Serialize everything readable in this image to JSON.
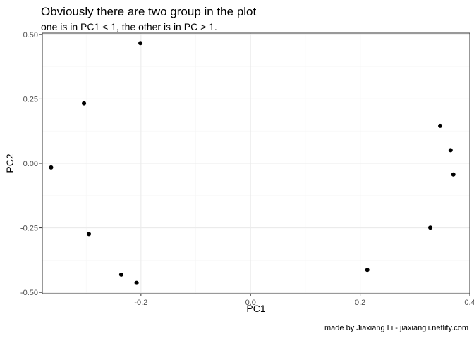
{
  "chart_data": {
    "type": "scatter",
    "title": "Obviously there are two group in the plot",
    "subtitle": "one is in PC1 < 1, the other is in PC > 1.",
    "xlabel": "PC1",
    "ylabel": "PC2",
    "caption": "made by Jiaxiang Li - jiaxiangli.netlify.com",
    "xlim": [
      -0.38,
      0.4
    ],
    "ylim": [
      -0.505,
      0.505
    ],
    "x_major_ticks": [
      -0.2,
      0.0,
      0.2,
      0.4
    ],
    "x_tick_labels": [
      "-0.2",
      "0.0",
      "0.2",
      "0.4"
    ],
    "x_minor_ticks": [
      -0.3,
      -0.1,
      0.1,
      0.3
    ],
    "y_major_ticks": [
      -0.5,
      -0.25,
      0.0,
      0.25,
      0.5
    ],
    "y_tick_labels": [
      "-0.50",
      "-0.25",
      "0.00",
      "0.25",
      "0.50"
    ],
    "y_minor_ticks": [
      -0.375,
      -0.125,
      0.125,
      0.375
    ],
    "grid": true,
    "theme": "bw",
    "point_color": "#000000",
    "grid_major_color": "#ebebeb",
    "grid_minor_color": "#f5f5f5",
    "panel_border_color": "#333333",
    "points": [
      {
        "x": -0.201,
        "y": 0.466
      },
      {
        "x": -0.304,
        "y": 0.233
      },
      {
        "x": -0.364,
        "y": -0.016
      },
      {
        "x": -0.295,
        "y": -0.274
      },
      {
        "x": -0.236,
        "y": -0.431
      },
      {
        "x": -0.208,
        "y": -0.463
      },
      {
        "x": 0.213,
        "y": -0.413
      },
      {
        "x": 0.328,
        "y": -0.249
      },
      {
        "x": 0.346,
        "y": 0.145
      },
      {
        "x": 0.365,
        "y": 0.051
      },
      {
        "x": 0.37,
        "y": -0.043
      }
    ]
  }
}
